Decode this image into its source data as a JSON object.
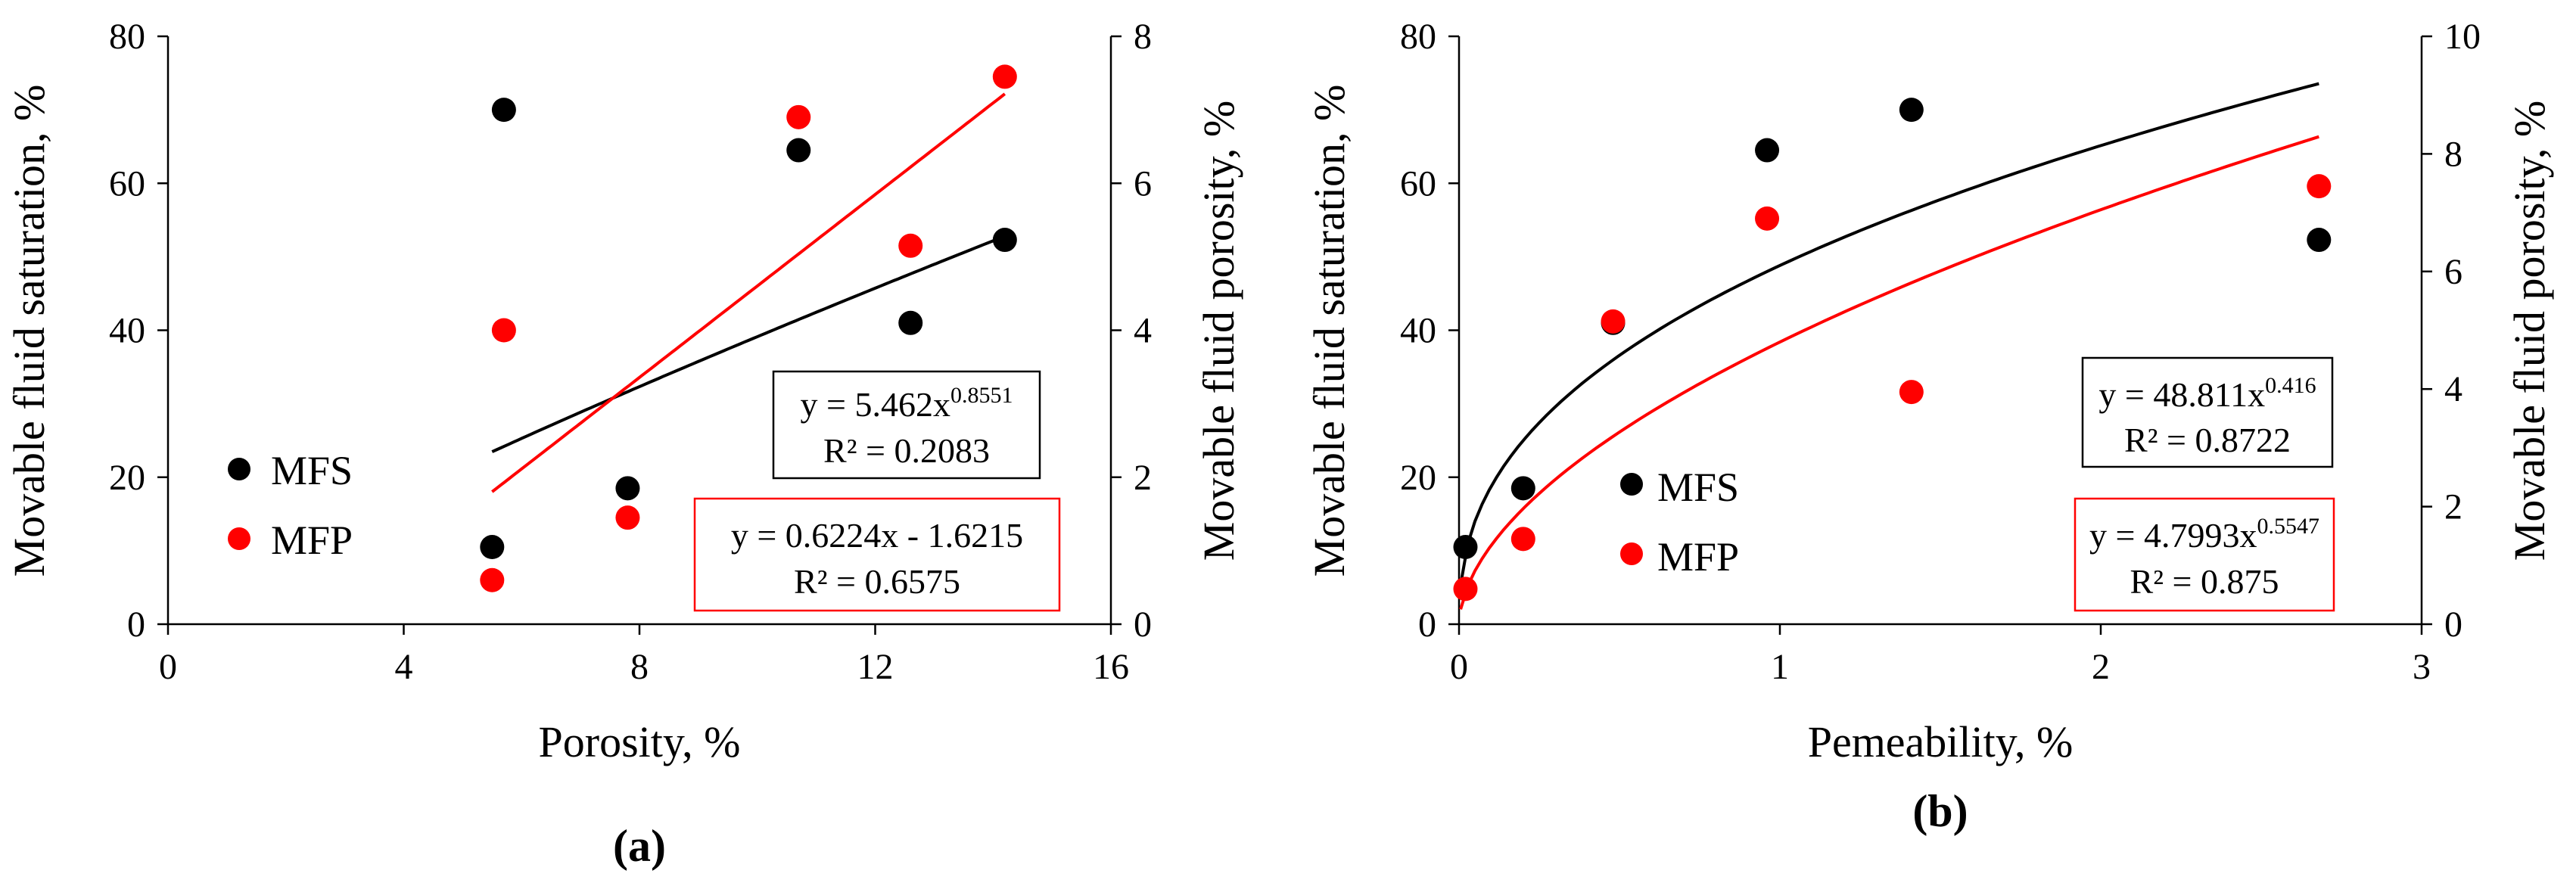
{
  "chart_data": [
    {
      "type": "scatter",
      "panel_label": "(a)",
      "xlabel": "Porosity, %",
      "ylabel": "Movable fluid saturation, %",
      "y2label": "Movable fluid porosity, %",
      "xlim": [
        0,
        16
      ],
      "ylim": [
        0,
        80
      ],
      "y2lim": [
        0,
        8
      ],
      "xticks": [
        0,
        4,
        8,
        12,
        16
      ],
      "yticks": [
        0,
        20,
        40,
        60,
        80
      ],
      "y2ticks": [
        0,
        2,
        4,
        6,
        8
      ],
      "legend": [
        {
          "label": "MFS",
          "color": "#000000"
        },
        {
          "label": "MFP",
          "color": "#ff0000"
        }
      ],
      "series": [
        {
          "name": "MFS",
          "axis": "left",
          "color": "#000000",
          "x": [
            5.5,
            5.7,
            7.8,
            10.7,
            12.6,
            14.2
          ],
          "y": [
            10.5,
            70.0,
            18.5,
            64.5,
            41.0,
            52.3
          ],
          "trendline": {
            "type": "power",
            "a": 5.462,
            "b": 0.8551,
            "xrange": [
              5.5,
              14.2
            ]
          }
        },
        {
          "name": "MFP",
          "axis": "right",
          "color": "#ff0000",
          "x": [
            5.5,
            5.7,
            7.8,
            10.7,
            12.6,
            14.2
          ],
          "y": [
            0.6,
            4.0,
            1.45,
            6.9,
            5.15,
            7.45
          ],
          "trendline": {
            "type": "linear",
            "a": 0.6224,
            "b": -1.6215,
            "xrange": [
              5.5,
              14.2
            ]
          }
        }
      ],
      "annotations": [
        {
          "series": "MFS",
          "eq_prefix": "y = 5.462x",
          "eq_exp": "0.8551",
          "r2": "R² = 0.2083",
          "color": "#000000"
        },
        {
          "series": "MFP",
          "eq_prefix": "y = 0.6224x - 1.6215",
          "eq_exp": "",
          "r2": "R² = 0.6575",
          "color": "#ff0000"
        }
      ]
    },
    {
      "type": "scatter",
      "panel_label": "(b)",
      "xlabel": "Pemeability, %",
      "ylabel": "Movable fluid saturation, %",
      "y2label": "Movable fluid porosity, %",
      "xlim": [
        0,
        3
      ],
      "ylim": [
        0,
        80
      ],
      "y2lim": [
        0,
        10
      ],
      "xticks": [
        0,
        1,
        2,
        3
      ],
      "yticks": [
        0,
        20,
        40,
        60,
        80
      ],
      "y2ticks": [
        0,
        2,
        4,
        6,
        8,
        10
      ],
      "legend": [
        {
          "label": "MFS",
          "color": "#000000"
        },
        {
          "label": "MFP",
          "color": "#ff0000"
        }
      ],
      "series": [
        {
          "name": "MFS",
          "axis": "left",
          "color": "#000000",
          "x": [
            0.02,
            0.2,
            0.48,
            0.96,
            1.41,
            2.68
          ],
          "y": [
            10.5,
            18.5,
            41.0,
            64.5,
            70.0,
            52.3
          ],
          "trendline": {
            "type": "power",
            "a": 48.811,
            "b": 0.416,
            "xrange": [
              0.005,
              2.68
            ]
          }
        },
        {
          "name": "MFP",
          "axis": "right",
          "color": "#ff0000",
          "x": [
            0.02,
            0.2,
            0.48,
            0.96,
            1.41,
            2.68
          ],
          "y": [
            0.6,
            1.45,
            5.15,
            6.9,
            3.95,
            7.45
          ],
          "trendline": {
            "type": "power",
            "a": 4.7993,
            "b": 0.5547,
            "xrange": [
              0.005,
              2.68
            ]
          }
        }
      ],
      "annotations": [
        {
          "series": "MFS",
          "eq_prefix": "y = 48.811x",
          "eq_exp": "0.416",
          "r2": "R² = 0.8722",
          "color": "#000000"
        },
        {
          "series": "MFP",
          "eq_prefix": "y = 4.7993x",
          "eq_exp": "0.5547",
          "r2": "R² = 0.875",
          "color": "#ff0000"
        }
      ]
    }
  ]
}
